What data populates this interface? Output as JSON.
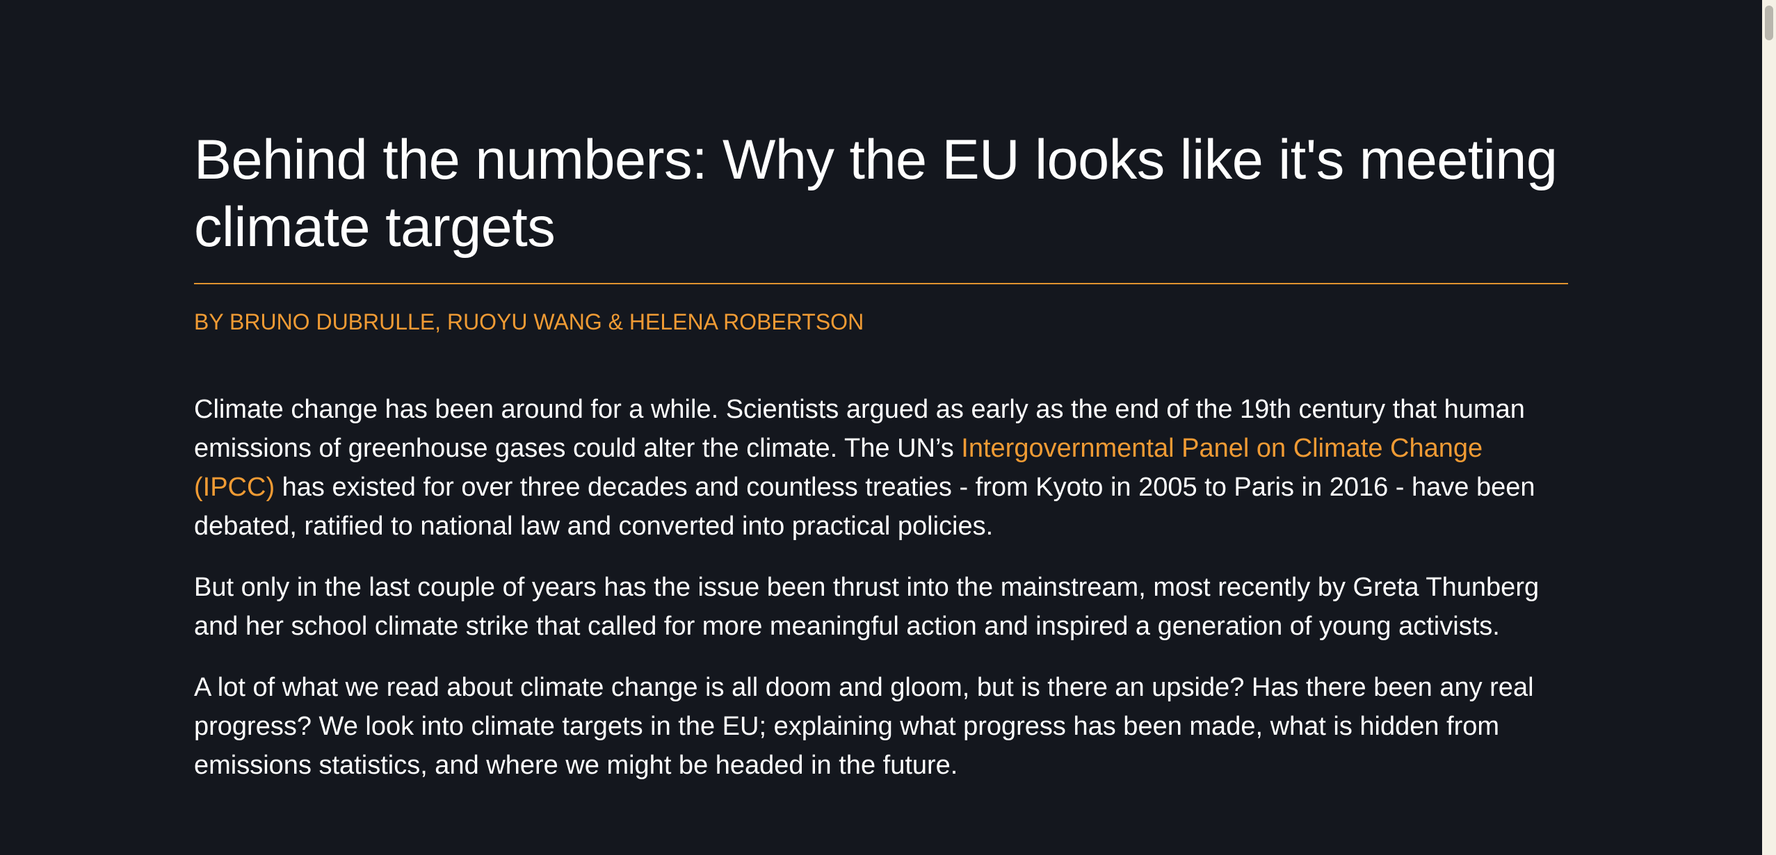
{
  "article": {
    "title": "Behind the numbers: Why the EU looks like it's meeting climate targets",
    "byline": "BY BRUNO DUBRULLE, RUOYU WANG & HELENA ROBERTSON",
    "paragraphs": [
      {
        "before": "Climate change has been around for a while. Scientists argued as early as the end of the 19th century that human emissions of greenhouse gases could alter the climate. The UN’s ",
        "link": "Intergovernmental Panel on Climate Change (IPCC)",
        "after": " has existed for over three decades and countless treaties - from Kyoto in 2005 to Paris in 2016 - have been debated, ratified to national law and converted into practical policies."
      },
      {
        "text": "But only in the last couple of years has the issue been thrust into the mainstream, most recently by Greta Thunberg and her school climate strike that called for more meaningful action and inspired a generation of young activists."
      },
      {
        "text": "A lot of what we read about climate change is all doom and gloom, but is there an upside? Has there been any real progress? We look into climate targets in the EU; explaining what progress has been made, what is hidden from emissions statistics, and where we might be headed in the future."
      }
    ]
  },
  "colors": {
    "background": "#14171e",
    "text": "#ffffff",
    "accent": "#f09b34"
  }
}
